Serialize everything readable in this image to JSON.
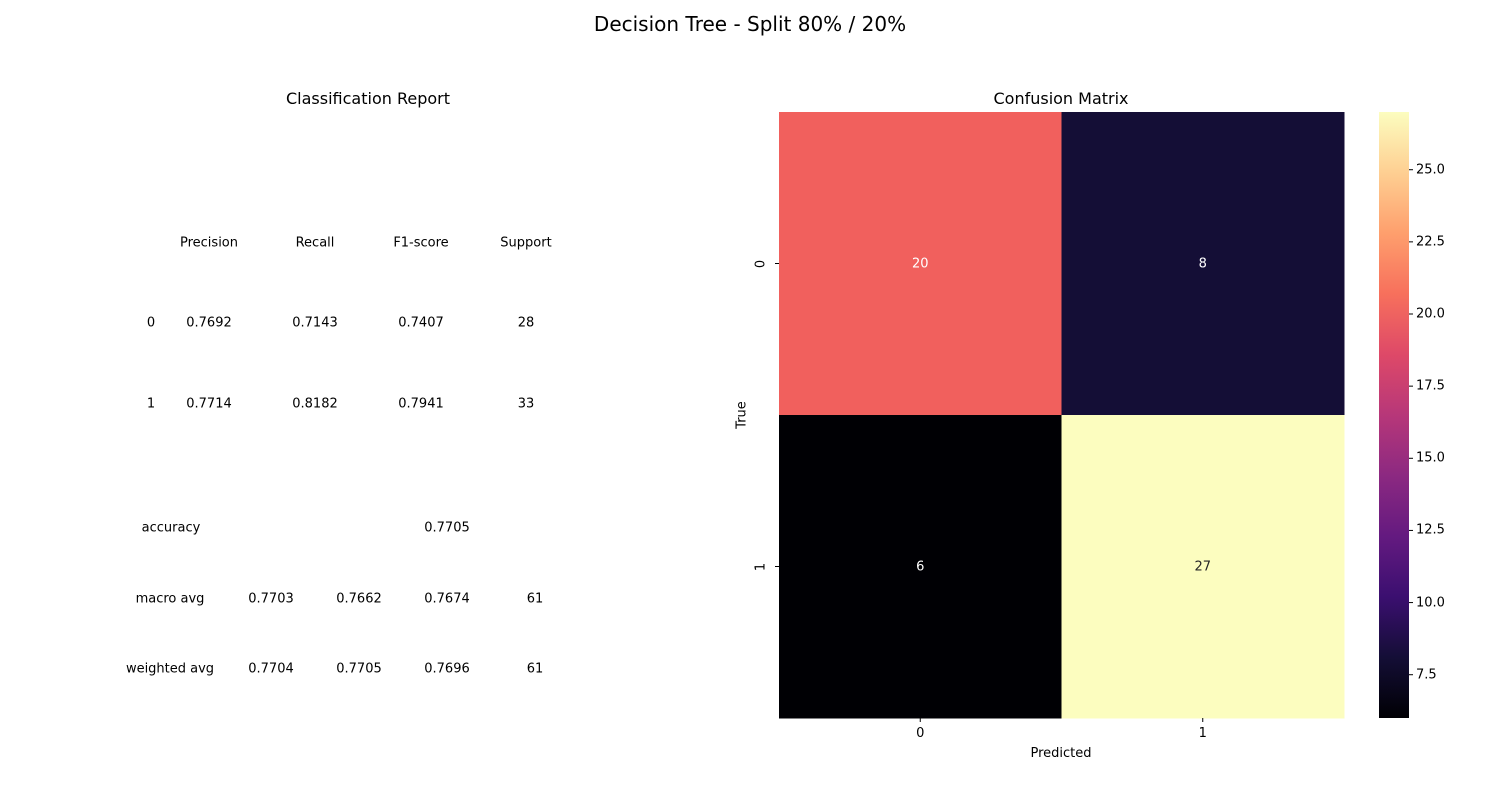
{
  "figure": {
    "suptitle": "Decision Tree - Split 80% / 20%"
  },
  "report": {
    "title": "Classification Report",
    "headers": [
      "Precision",
      "Recall",
      "F1-score",
      "Support"
    ],
    "class_rows": [
      {
        "label": "0",
        "values": [
          "0.7692",
          "0.7143",
          "0.7407",
          "28"
        ]
      },
      {
        "label": "1",
        "values": [
          "0.7714",
          "0.8182",
          "0.7941",
          "33"
        ]
      }
    ],
    "accuracy": {
      "label": "accuracy",
      "value": "0.7705"
    },
    "avg_rows": [
      {
        "label": "macro avg",
        "values": [
          "0.7703",
          "0.7662",
          "0.7674",
          "61"
        ]
      },
      {
        "label": "weighted avg",
        "values": [
          "0.7704",
          "0.7705",
          "0.7696",
          "61"
        ]
      }
    ]
  },
  "chart_data": {
    "type": "heatmap",
    "title": "Confusion Matrix",
    "xlabel": "Predicted",
    "ylabel": "True",
    "x_categories": [
      "0",
      "1"
    ],
    "y_categories": [
      "0",
      "1"
    ],
    "values": [
      [
        20,
        8
      ],
      [
        6,
        27
      ]
    ],
    "colormap": "magma",
    "colorbar": {
      "min": 6,
      "max": 27,
      "ticks": [
        "7.5",
        "10.0",
        "12.5",
        "15.0",
        "17.5",
        "20.0",
        "22.5",
        "25.0"
      ],
      "tick_values": [
        7.5,
        10.0,
        12.5,
        15.0,
        17.5,
        20.0,
        22.5,
        25.0
      ]
    },
    "cell_colors": [
      "#f1605d",
      "#140e36",
      "#000004",
      "#fcfdbf"
    ],
    "annotation_colors": [
      "#ffffff",
      "#ffffff",
      "#ffffff",
      "#262626"
    ]
  }
}
